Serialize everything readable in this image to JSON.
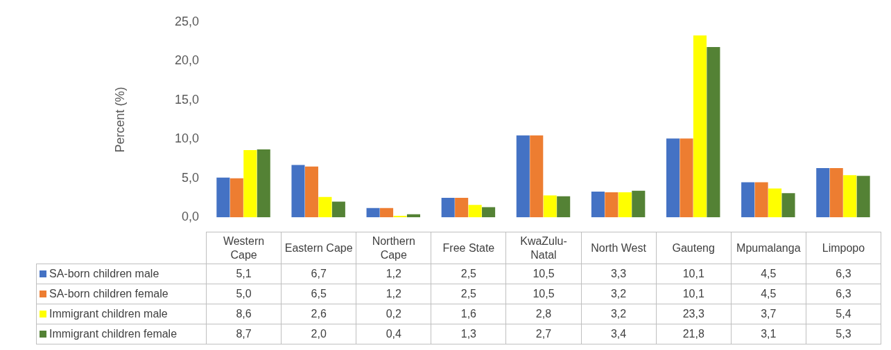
{
  "chart_data": {
    "type": "bar",
    "ylabel": "Percent (%)",
    "categories": [
      "Western Cape",
      "Eastern Cape",
      "Northern Cape",
      "Free State",
      "KwaZulu-Natal",
      "North West",
      "Gauteng",
      "Mpumalanga",
      "Limpopo"
    ],
    "series": [
      {
        "name": "SA-born children male",
        "color": "#4472c4",
        "values": [
          5.1,
          6.7,
          1.2,
          2.5,
          10.5,
          3.3,
          10.1,
          4.5,
          6.3
        ],
        "value_labels": [
          "5,1",
          "6,7",
          "1,2",
          "2,5",
          "10,5",
          "3,3",
          "10,1",
          "4,5",
          "6,3"
        ]
      },
      {
        "name": "SA-born children female",
        "color": "#ed7d31",
        "values": [
          5.0,
          6.5,
          1.2,
          2.5,
          10.5,
          3.2,
          10.1,
          4.5,
          6.3
        ],
        "value_labels": [
          "5,0",
          "6,5",
          "1,2",
          "2,5",
          "10,5",
          "3,2",
          "10,1",
          "4,5",
          "6,3"
        ]
      },
      {
        "name": "Immigrant children male",
        "color": "#ffff00",
        "values": [
          8.6,
          2.6,
          0.2,
          1.6,
          2.8,
          3.2,
          23.3,
          3.7,
          5.4
        ],
        "value_labels": [
          "8,6",
          "2,6",
          "0,2",
          "1,6",
          "2,8",
          "3,2",
          "23,3",
          "3,7",
          "5,4"
        ]
      },
      {
        "name": "Immigrant children female",
        "color": "#548235",
        "values": [
          8.7,
          2.0,
          0.4,
          1.3,
          2.7,
          3.4,
          21.8,
          3.1,
          5.3
        ],
        "value_labels": [
          "8,7",
          "2,0",
          "0,4",
          "1,3",
          "2,7",
          "3,4",
          "21,8",
          "3,1",
          "5,3"
        ]
      }
    ],
    "ylim": [
      0,
      25
    ],
    "yticks": [
      {
        "value": 0,
        "label": "0,0"
      },
      {
        "value": 5,
        "label": "5,0"
      },
      {
        "value": 10,
        "label": "10,0"
      },
      {
        "value": 15,
        "label": "15,0"
      },
      {
        "value": 20,
        "label": "20,0"
      },
      {
        "value": 25,
        "label": "25,0"
      }
    ],
    "grid": false,
    "legend": "bottom"
  }
}
